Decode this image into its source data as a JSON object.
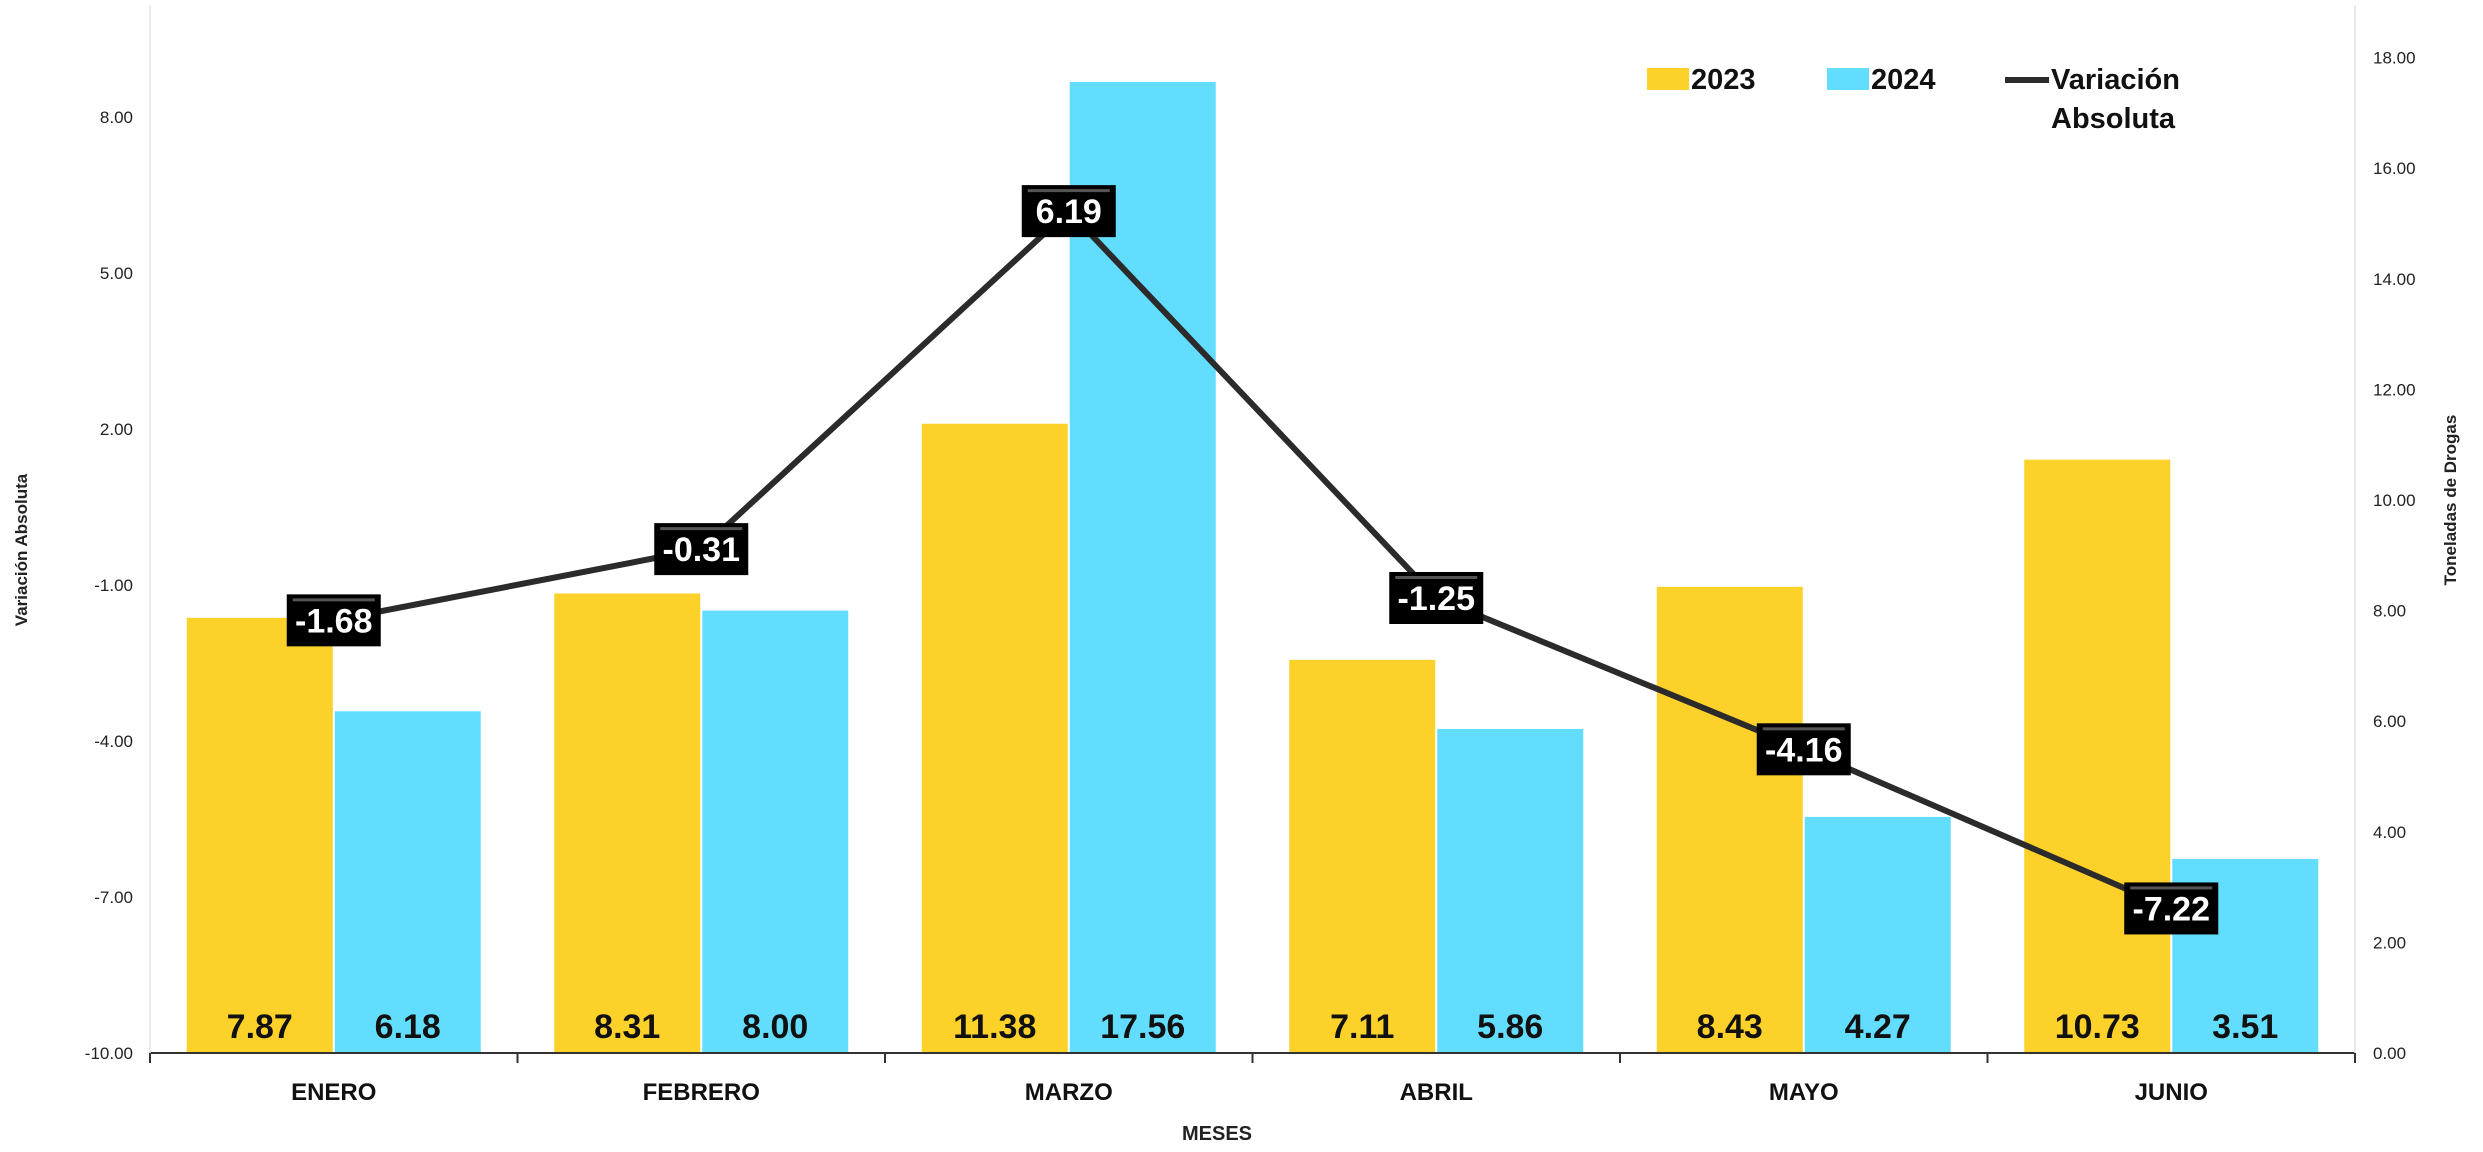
{
  "chart_data": {
    "type": "bar",
    "categories": [
      "ENERO",
      "FEBRERO",
      "MARZO",
      "ABRIL",
      "MAYO",
      "JUNIO"
    ],
    "series": [
      {
        "name": "2023",
        "axis": "right",
        "values": [
          7.87,
          8.31,
          11.38,
          7.11,
          8.43,
          10.73
        ],
        "color": "#FCD12A"
      },
      {
        "name": "2024",
        "axis": "right",
        "values": [
          6.18,
          8.0,
          17.56,
          5.86,
          4.27,
          3.51
        ],
        "color": "#62DDFD"
      },
      {
        "name": "Variación Absoluta",
        "type": "line",
        "axis": "left",
        "values": [
          -1.68,
          -0.31,
          6.19,
          -1.25,
          -4.16,
          -7.22
        ],
        "color": "#2B2B2B"
      }
    ],
    "xlabel": "MESES",
    "ylabel_left": "Variación Absoluta",
    "ylabel_right": "Toneladas de Drogas",
    "ylim_left": [
      -10,
      10
    ],
    "yticks_left": [
      "-10.00",
      "-7.00",
      "-4.00",
      "-1.00",
      "2.00",
      "5.00",
      "8.00"
    ],
    "ylim_right": [
      0,
      18.5
    ],
    "yticks_right": [
      "0.00",
      "2.00",
      "4.00",
      "6.00",
      "8.00",
      "10.00",
      "12.00",
      "14.00",
      "16.00",
      "18.00"
    ],
    "bar_labels_2023": [
      "7.87",
      "8.31",
      "11.38",
      "7.11",
      "8.43",
      "10.73"
    ],
    "bar_labels_2024": [
      "6.18",
      "8.00",
      "17.56",
      "5.86",
      "4.27",
      "3.51"
    ],
    "line_labels": [
      "-1.68",
      "-0.31",
      "6.19",
      "-1.25",
      "-4.16",
      "-7.22"
    ],
    "legend": {
      "position": "top-right",
      "entries": [
        "2023",
        "2024",
        "Variación Absoluta"
      ]
    },
    "grid": false
  }
}
